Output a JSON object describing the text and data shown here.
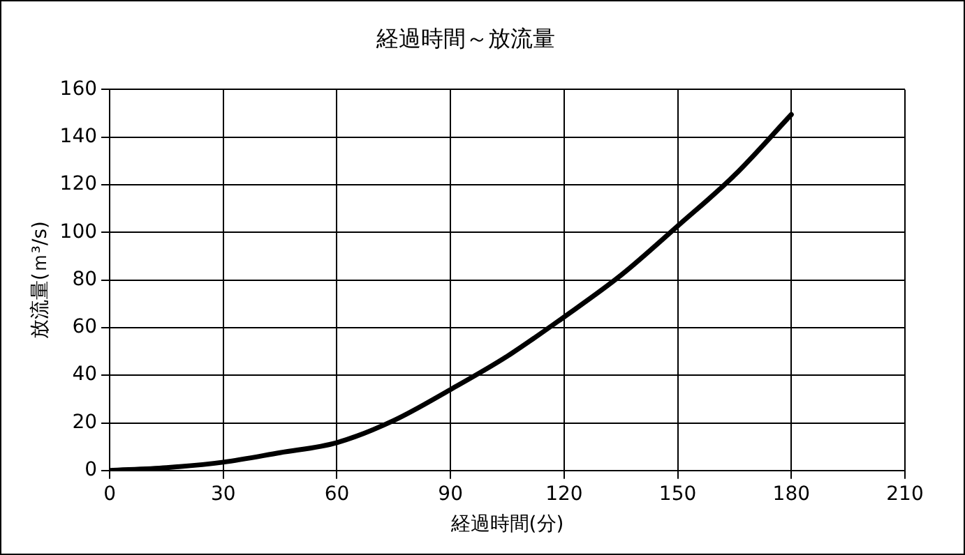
{
  "chart_data": {
    "type": "line",
    "title": "経過時間～放流量",
    "xlabel": "経過時間(分)",
    "ylabel": "放流量(ｍ³/s)",
    "x": [
      0,
      15,
      30,
      45,
      60,
      75,
      90,
      105,
      120,
      135,
      150,
      165,
      180
    ],
    "series": [
      {
        "color": "#000000",
        "values": [
          0,
          1.2,
          3.5,
          7.5,
          11.7,
          21,
          34,
          48,
          64.5,
          82,
          102.7,
          124,
          149.5
        ]
      }
    ],
    "xlim": [
      0,
      210
    ],
    "xticks": [
      0,
      30,
      60,
      90,
      120,
      150,
      180,
      210
    ],
    "ylim": [
      0,
      160
    ],
    "yticks": [
      0,
      20,
      40,
      60,
      80,
      100,
      120,
      140,
      160
    ],
    "grid": true,
    "legend": false,
    "marker": "none",
    "line_style": "solid"
  }
}
